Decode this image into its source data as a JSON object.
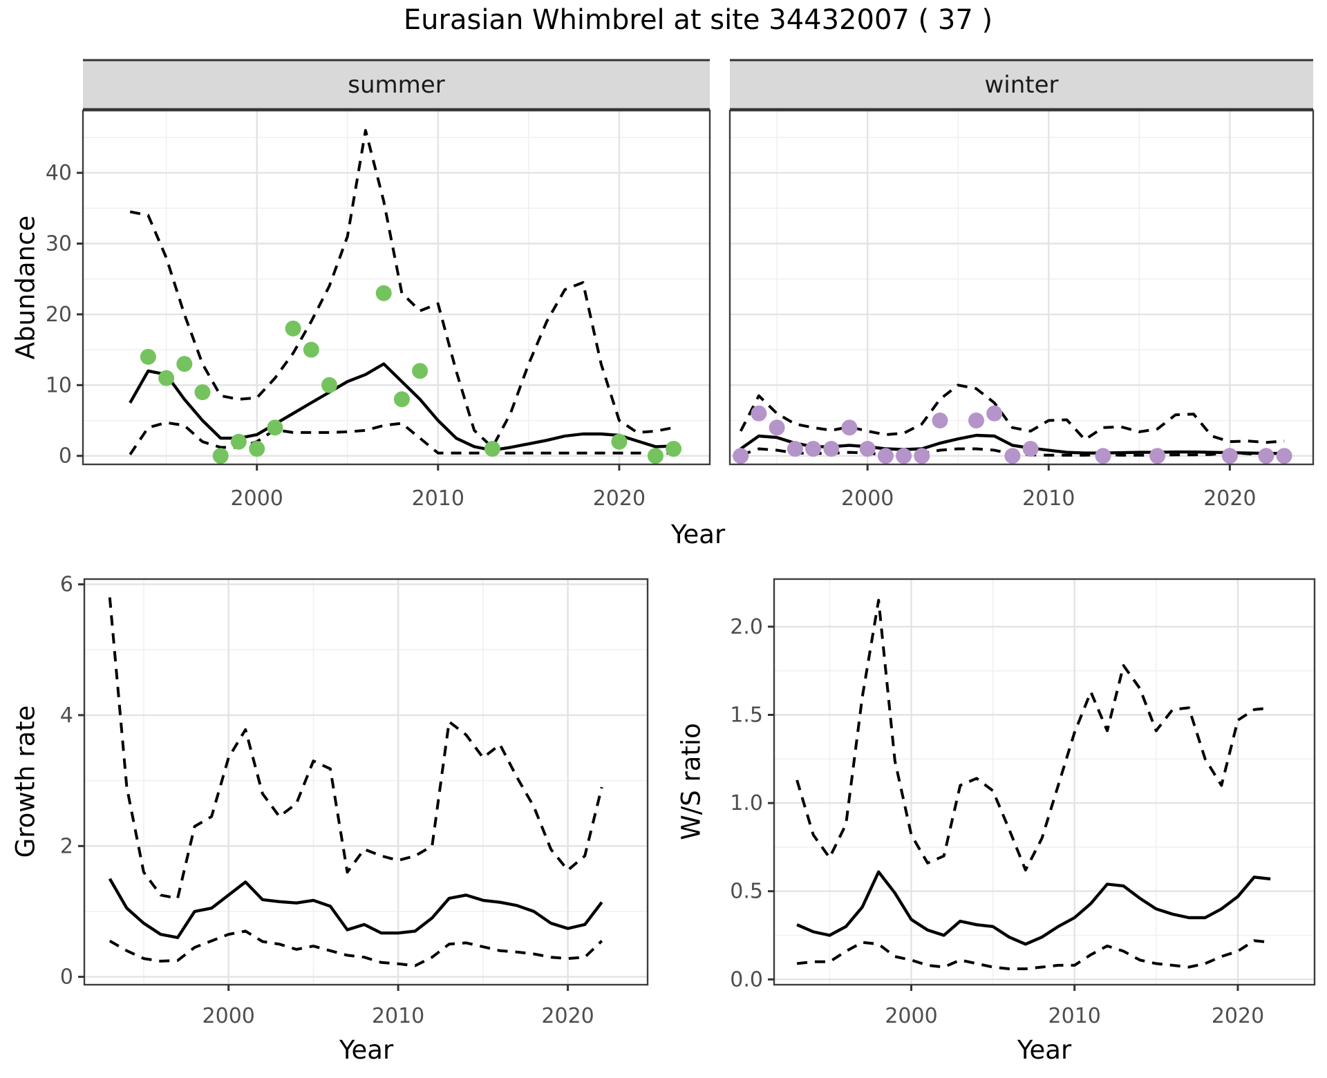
{
  "title": "Eurasian Whimbrel at site 34432007 ( 37 )",
  "labels": {
    "abundance_axis": "Abundance",
    "growth_axis": "Growth rate",
    "ws_axis": "W/S ratio",
    "year_axis_top": "Year",
    "year_axis_bottom_left": "Year",
    "year_axis_bottom_right": "Year"
  },
  "facets": {
    "summer": "summer",
    "winter": "winter"
  },
  "colors": {
    "summer_point": "#75c35e",
    "winter_point": "#b494c9",
    "line": "#000000",
    "grid_major": "#e3e3e3",
    "grid_minor": "#f0f0f0",
    "panel_border": "#3c3c3c",
    "strip_bg": "#d9d9d9",
    "tick_text": "#4d4d4d",
    "background": "#ffffff"
  },
  "chart_data": [
    {
      "id": "summer",
      "type": "line",
      "facet_label": "summer",
      "title": "Abundance - summer facet",
      "xlabel": "Year",
      "ylabel": "Abundance",
      "xlim": [
        1990.4,
        2025.0
      ],
      "ylim": [
        -1.2,
        48.8
      ],
      "xticks": [
        2000,
        2010,
        2020
      ],
      "xtick_labels": [
        "2000",
        "2010",
        "2020"
      ],
      "xminor": [
        1995,
        2005,
        2015
      ],
      "yticks": [
        0,
        10,
        20,
        30,
        40
      ],
      "ytick_labels": [
        "0",
        "10",
        "20",
        "30",
        "40"
      ],
      "yminor": [
        5,
        15,
        25,
        35,
        45
      ],
      "years": [
        1993,
        1994,
        1995,
        1996,
        1997,
        1998,
        1999,
        2000,
        2001,
        2002,
        2003,
        2004,
        2005,
        2006,
        2007,
        2008,
        2009,
        2010,
        2011,
        2012,
        2013,
        2014,
        2015,
        2016,
        2017,
        2018,
        2019,
        2020,
        2021,
        2022,
        2023
      ],
      "series": [
        {
          "name": "ci-upper",
          "style": "dashed",
          "values": [
            34.5,
            34,
            28,
            20,
            13,
            8.5,
            8,
            8.2,
            11,
            14.5,
            19,
            24,
            31,
            46,
            36,
            23,
            20.5,
            21.5,
            12,
            3.6,
            1.2,
            6,
            13,
            19,
            23.5,
            24.5,
            13,
            5,
            3.3,
            3.5,
            4
          ]
        },
        {
          "name": "ci-lower",
          "style": "dashed",
          "values": [
            0.2,
            4,
            4.7,
            4.3,
            2,
            1.2,
            1.2,
            2,
            3.7,
            3.3,
            3.3,
            3.3,
            3.4,
            3.6,
            4.3,
            4.6,
            2.5,
            0.4,
            0.4,
            0.4,
            0.4,
            0.4,
            0.4,
            0.4,
            0.4,
            0.4,
            0.4,
            0.4,
            0.4,
            0.4,
            0.4
          ]
        },
        {
          "name": "mean",
          "style": "solid",
          "values": [
            7.5,
            12,
            11.5,
            8,
            5,
            2.5,
            2.5,
            3,
            4.5,
            6,
            7.5,
            9,
            10.5,
            11.5,
            13,
            10.5,
            8,
            5,
            2.5,
            1.3,
            0.8,
            1.2,
            1.7,
            2.2,
            2.8,
            3.1,
            3.1,
            2.9,
            2.1,
            1.3,
            1.4
          ]
        }
      ],
      "points": {
        "name": "summer-observations",
        "color_key": "summer_point",
        "x": [
          1994,
          1995,
          1996,
          1997,
          1998,
          1999,
          2000,
          2001,
          2002,
          2003,
          2004,
          2007,
          2008,
          2009,
          2013,
          2020,
          2022,
          2023
        ],
        "y": [
          14,
          11,
          13,
          9,
          0,
          2,
          1,
          4,
          18,
          15,
          10,
          23,
          8,
          12,
          1,
          2,
          0,
          1
        ]
      }
    },
    {
      "id": "winter",
      "type": "line",
      "facet_label": "winter",
      "title": "Abundance - winter facet",
      "xlabel": "Year",
      "ylabel": "Abundance",
      "xlim": [
        1992.4,
        2024.6
      ],
      "ylim": [
        -1.2,
        48.8
      ],
      "xticks": [
        2000,
        2010,
        2020
      ],
      "xtick_labels": [
        "2000",
        "2010",
        "2020"
      ],
      "xminor": [
        1995,
        2005,
        2015
      ],
      "yticks": [
        0,
        10,
        20,
        30,
        40
      ],
      "ytick_labels": [],
      "yminor": [
        5,
        15,
        25,
        35,
        45
      ],
      "years": [
        1993,
        1994,
        1995,
        1996,
        1997,
        1998,
        1999,
        2000,
        2001,
        2002,
        2003,
        2004,
        2005,
        2006,
        2007,
        2008,
        2009,
        2010,
        2011,
        2012,
        2013,
        2014,
        2015,
        2016,
        2017,
        2018,
        2019,
        2020,
        2021,
        2022,
        2023
      ],
      "series": [
        {
          "name": "ci-upper",
          "style": "dashed",
          "values": [
            3.5,
            8.5,
            6,
            4.5,
            4,
            3.6,
            4.1,
            3.5,
            3,
            3.2,
            4.5,
            8,
            10,
            9.5,
            7.5,
            4,
            3.5,
            5,
            5.1,
            2.3,
            4,
            4.1,
            3.4,
            3.8,
            5.8,
            5.9,
            2.8,
            2,
            2.1,
            1.9,
            2.1
          ]
        },
        {
          "name": "ci-lower",
          "style": "dashed",
          "values": [
            0.1,
            1,
            0.8,
            0.4,
            0.35,
            0.35,
            0.5,
            0.4,
            0.15,
            0.15,
            0.3,
            0.8,
            1,
            1,
            0.8,
            0.25,
            0.15,
            0.1,
            0.1,
            0.1,
            0.15,
            0.1,
            0.1,
            0.1,
            0.15,
            0.15,
            0.2,
            0.5,
            0.3,
            0.1,
            0.1
          ]
        },
        {
          "name": "mean",
          "style": "solid",
          "values": [
            1,
            2.8,
            2.6,
            1.8,
            1.3,
            1.3,
            1.5,
            1.3,
            1,
            0.9,
            1,
            1.8,
            2.4,
            2.9,
            2.8,
            1.5,
            1.1,
            0.8,
            0.5,
            0.4,
            0.4,
            0.45,
            0.5,
            0.5,
            0.55,
            0.55,
            0.5,
            0.45,
            0.4,
            0.35,
            0.35
          ]
        }
      ],
      "points": {
        "name": "winter-observations",
        "color_key": "winter_point",
        "x": [
          1993,
          1994,
          1995,
          1996,
          1997,
          1998,
          1999,
          2000,
          2001,
          2002,
          2003,
          2004,
          2006,
          2007,
          2008,
          2009,
          2013,
          2016,
          2020,
          2022,
          2023
        ],
        "y": [
          0,
          6,
          4,
          1,
          1,
          1,
          4,
          1,
          0,
          0,
          0,
          5,
          5,
          6,
          0,
          1,
          0,
          0,
          0,
          0,
          0
        ]
      }
    },
    {
      "id": "growth",
      "type": "line",
      "facet_label": null,
      "title": "Growth rate",
      "xlabel": "Year",
      "ylabel": "Growth rate",
      "xlim": [
        1991.5,
        2024.7
      ],
      "ylim": [
        -0.12,
        6.08
      ],
      "xticks": [
        2000,
        2010,
        2020
      ],
      "xtick_labels": [
        "2000",
        "2010",
        "2020"
      ],
      "xminor": [
        1995,
        2005,
        2015
      ],
      "yticks": [
        0,
        2,
        4,
        6
      ],
      "ytick_labels": [
        "0",
        "2",
        "4",
        "6"
      ],
      "yminor": [
        1,
        3,
        5
      ],
      "years": [
        1993,
        1994,
        1995,
        1996,
        1997,
        1998,
        1999,
        2000,
        2001,
        2002,
        2003,
        2004,
        2005,
        2006,
        2007,
        2008,
        2009,
        2010,
        2011,
        2012,
        2013,
        2014,
        2015,
        2016,
        2017,
        2018,
        2019,
        2020,
        2021,
        2022
      ],
      "series": [
        {
          "name": "ci-upper",
          "style": "dashed",
          "values": [
            5.8,
            2.9,
            1.6,
            1.25,
            1.2,
            2.3,
            2.45,
            3.35,
            3.78,
            2.8,
            2.45,
            2.65,
            3.3,
            3.18,
            1.6,
            1.95,
            1.85,
            1.78,
            1.85,
            2.0,
            3.9,
            3.7,
            3.35,
            3.55,
            3.05,
            2.6,
            1.95,
            1.63,
            1.85,
            2.9
          ]
        },
        {
          "name": "ci-lower",
          "style": "dashed",
          "values": [
            0.55,
            0.4,
            0.28,
            0.24,
            0.25,
            0.45,
            0.55,
            0.65,
            0.7,
            0.54,
            0.5,
            0.42,
            0.47,
            0.4,
            0.33,
            0.3,
            0.22,
            0.2,
            0.17,
            0.3,
            0.5,
            0.52,
            0.46,
            0.4,
            0.38,
            0.35,
            0.3,
            0.28,
            0.3,
            0.55
          ]
        },
        {
          "name": "mean",
          "style": "solid",
          "values": [
            1.5,
            1.05,
            0.82,
            0.65,
            0.6,
            1.0,
            1.05,
            1.25,
            1.45,
            1.18,
            1.15,
            1.13,
            1.17,
            1.08,
            0.72,
            0.8,
            0.67,
            0.67,
            0.7,
            0.9,
            1.2,
            1.25,
            1.17,
            1.14,
            1.09,
            1.0,
            0.82,
            0.74,
            0.8,
            1.14
          ]
        }
      ],
      "points": null
    },
    {
      "id": "ws",
      "type": "line",
      "facet_label": null,
      "title": "W/S ratio",
      "xlabel": "Year",
      "ylabel": "W/S ratio",
      "xlim": [
        1991.6,
        2024.7
      ],
      "ylim": [
        -0.03,
        2.27
      ],
      "xticks": [
        2000,
        2010,
        2020
      ],
      "xtick_labels": [
        "2000",
        "2010",
        "2020"
      ],
      "xminor": [
        1995,
        2005,
        2015
      ],
      "yticks": [
        0.0,
        0.5,
        1.0,
        1.5,
        2.0
      ],
      "ytick_labels": [
        "0.0",
        "0.5",
        "1.0",
        "1.5",
        "2.0"
      ],
      "yminor": [
        0.25,
        0.75,
        1.25,
        1.75
      ],
      "years": [
        1993,
        1994,
        1995,
        1996,
        1997,
        1998,
        1999,
        2000,
        2001,
        2002,
        2003,
        2004,
        2005,
        2006,
        2007,
        2008,
        2009,
        2010,
        2011,
        2012,
        2013,
        2014,
        2015,
        2016,
        2017,
        2018,
        2019,
        2020,
        2021,
        2022
      ],
      "series": [
        {
          "name": "ci-upper",
          "style": "dashed",
          "values": [
            1.13,
            0.82,
            0.69,
            0.88,
            1.6,
            2.15,
            1.24,
            0.82,
            0.66,
            0.7,
            1.1,
            1.14,
            1.07,
            0.85,
            0.62,
            0.8,
            1.1,
            1.4,
            1.63,
            1.41,
            1.78,
            1.65,
            1.41,
            1.53,
            1.54,
            1.25,
            1.1,
            1.47,
            1.53,
            1.54
          ]
        },
        {
          "name": "ci-lower",
          "style": "dashed",
          "values": [
            0.09,
            0.1,
            0.1,
            0.16,
            0.21,
            0.2,
            0.13,
            0.11,
            0.08,
            0.07,
            0.11,
            0.09,
            0.07,
            0.06,
            0.06,
            0.07,
            0.08,
            0.08,
            0.14,
            0.19,
            0.16,
            0.11,
            0.09,
            0.08,
            0.07,
            0.09,
            0.13,
            0.16,
            0.22,
            0.21
          ]
        },
        {
          "name": "mean",
          "style": "solid",
          "values": [
            0.31,
            0.27,
            0.25,
            0.3,
            0.41,
            0.61,
            0.49,
            0.34,
            0.28,
            0.25,
            0.33,
            0.31,
            0.3,
            0.24,
            0.2,
            0.24,
            0.3,
            0.35,
            0.43,
            0.54,
            0.53,
            0.46,
            0.4,
            0.37,
            0.35,
            0.35,
            0.4,
            0.47,
            0.58,
            0.57
          ]
        }
      ],
      "points": null
    }
  ]
}
